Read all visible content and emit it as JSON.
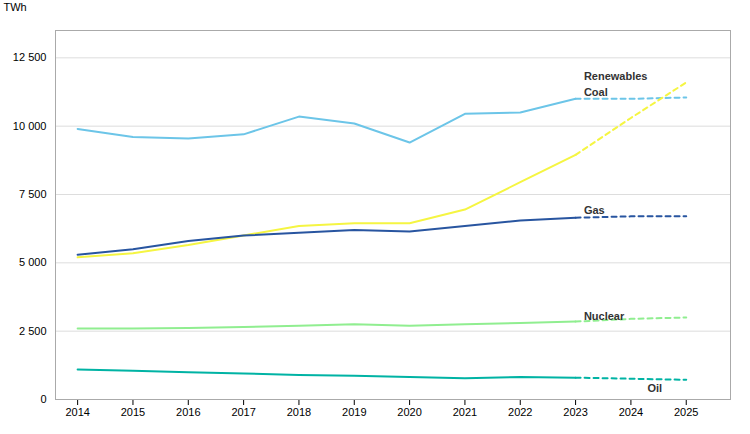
{
  "chart_data": {
    "type": "line",
    "ylabel": "TWh",
    "x": [
      2014,
      2015,
      2016,
      2017,
      2018,
      2019,
      2020,
      2021,
      2022,
      2023,
      2024,
      2025
    ],
    "series": [
      {
        "name": "Coal",
        "color": "#6CC5E8",
        "line_style": "solid",
        "values": [
          9900,
          9600,
          9550,
          9700,
          10350,
          10100,
          9400,
          10450,
          10500,
          11000,
          null,
          null
        ]
      },
      {
        "name": "Coal",
        "color": "#6CC5E8",
        "line_style": "dashed",
        "values": [
          null,
          null,
          null,
          null,
          null,
          null,
          null,
          null,
          null,
          11000,
          11000,
          11050
        ]
      },
      {
        "name": "Renewables",
        "color": "#F5F542",
        "line_style": "solid",
        "values": [
          5200,
          5350,
          5650,
          6000,
          6350,
          6450,
          6450,
          6950,
          7950,
          8950,
          null,
          null
        ]
      },
      {
        "name": "Renewables",
        "color": "#F5F542",
        "line_style": "dashed",
        "values": [
          null,
          null,
          null,
          null,
          null,
          null,
          null,
          null,
          null,
          8950,
          10300,
          11600
        ]
      },
      {
        "name": "Gas",
        "color": "#2855A0",
        "line_style": "solid",
        "values": [
          5300,
          5500,
          5800,
          6000,
          6100,
          6200,
          6150,
          6350,
          6550,
          6650,
          null,
          null
        ]
      },
      {
        "name": "Gas",
        "color": "#2855A0",
        "line_style": "dashed",
        "values": [
          null,
          null,
          null,
          null,
          null,
          null,
          null,
          null,
          null,
          6650,
          6700,
          6700
        ]
      },
      {
        "name": "Nuclear",
        "color": "#90EE90",
        "line_style": "solid",
        "values": [
          2600,
          2600,
          2620,
          2650,
          2700,
          2750,
          2700,
          2750,
          2800,
          2850,
          null,
          null
        ]
      },
      {
        "name": "Nuclear",
        "color": "#90EE90",
        "line_style": "dashed",
        "values": [
          null,
          null,
          null,
          null,
          null,
          null,
          null,
          null,
          null,
          2850,
          2950,
          3000
        ]
      },
      {
        "name": "Oil",
        "color": "#00B3A4",
        "line_style": "solid",
        "values": [
          1100,
          1050,
          1000,
          950,
          900,
          870,
          820,
          780,
          820,
          800,
          null,
          null
        ]
      },
      {
        "name": "Oil",
        "color": "#00B3A4",
        "line_style": "dashed",
        "values": [
          null,
          null,
          null,
          null,
          null,
          null,
          null,
          null,
          null,
          800,
          760,
          720
        ]
      }
    ],
    "annotations": [
      {
        "text": "Coal",
        "x": 2023.15,
        "y": 11250
      },
      {
        "text": "Renewables",
        "x": 2023.15,
        "y": 11800
      },
      {
        "text": "Gas",
        "x": 2023.15,
        "y": 6930
      },
      {
        "text": "Nuclear",
        "x": 2023.15,
        "y": 3050
      },
      {
        "text": "Oil",
        "x": 2024.3,
        "y": 390
      }
    ],
    "xlim": [
      2013.6,
      2025.8
    ],
    "xticks": [
      2014,
      2015,
      2016,
      2017,
      2018,
      2019,
      2020,
      2021,
      2022,
      2023,
      2024,
      2025
    ],
    "ylim": [
      0,
      13500
    ],
    "yticks": [
      0,
      {
        "value": 2500,
        "label": "2 500"
      },
      {
        "value": 5000,
        "label": "5 000"
      },
      {
        "value": 7500,
        "label": "7 500"
      },
      {
        "value": 10000,
        "label": "10 000"
      },
      {
        "value": 12500,
        "label": "12 500"
      }
    ],
    "grid": true
  }
}
